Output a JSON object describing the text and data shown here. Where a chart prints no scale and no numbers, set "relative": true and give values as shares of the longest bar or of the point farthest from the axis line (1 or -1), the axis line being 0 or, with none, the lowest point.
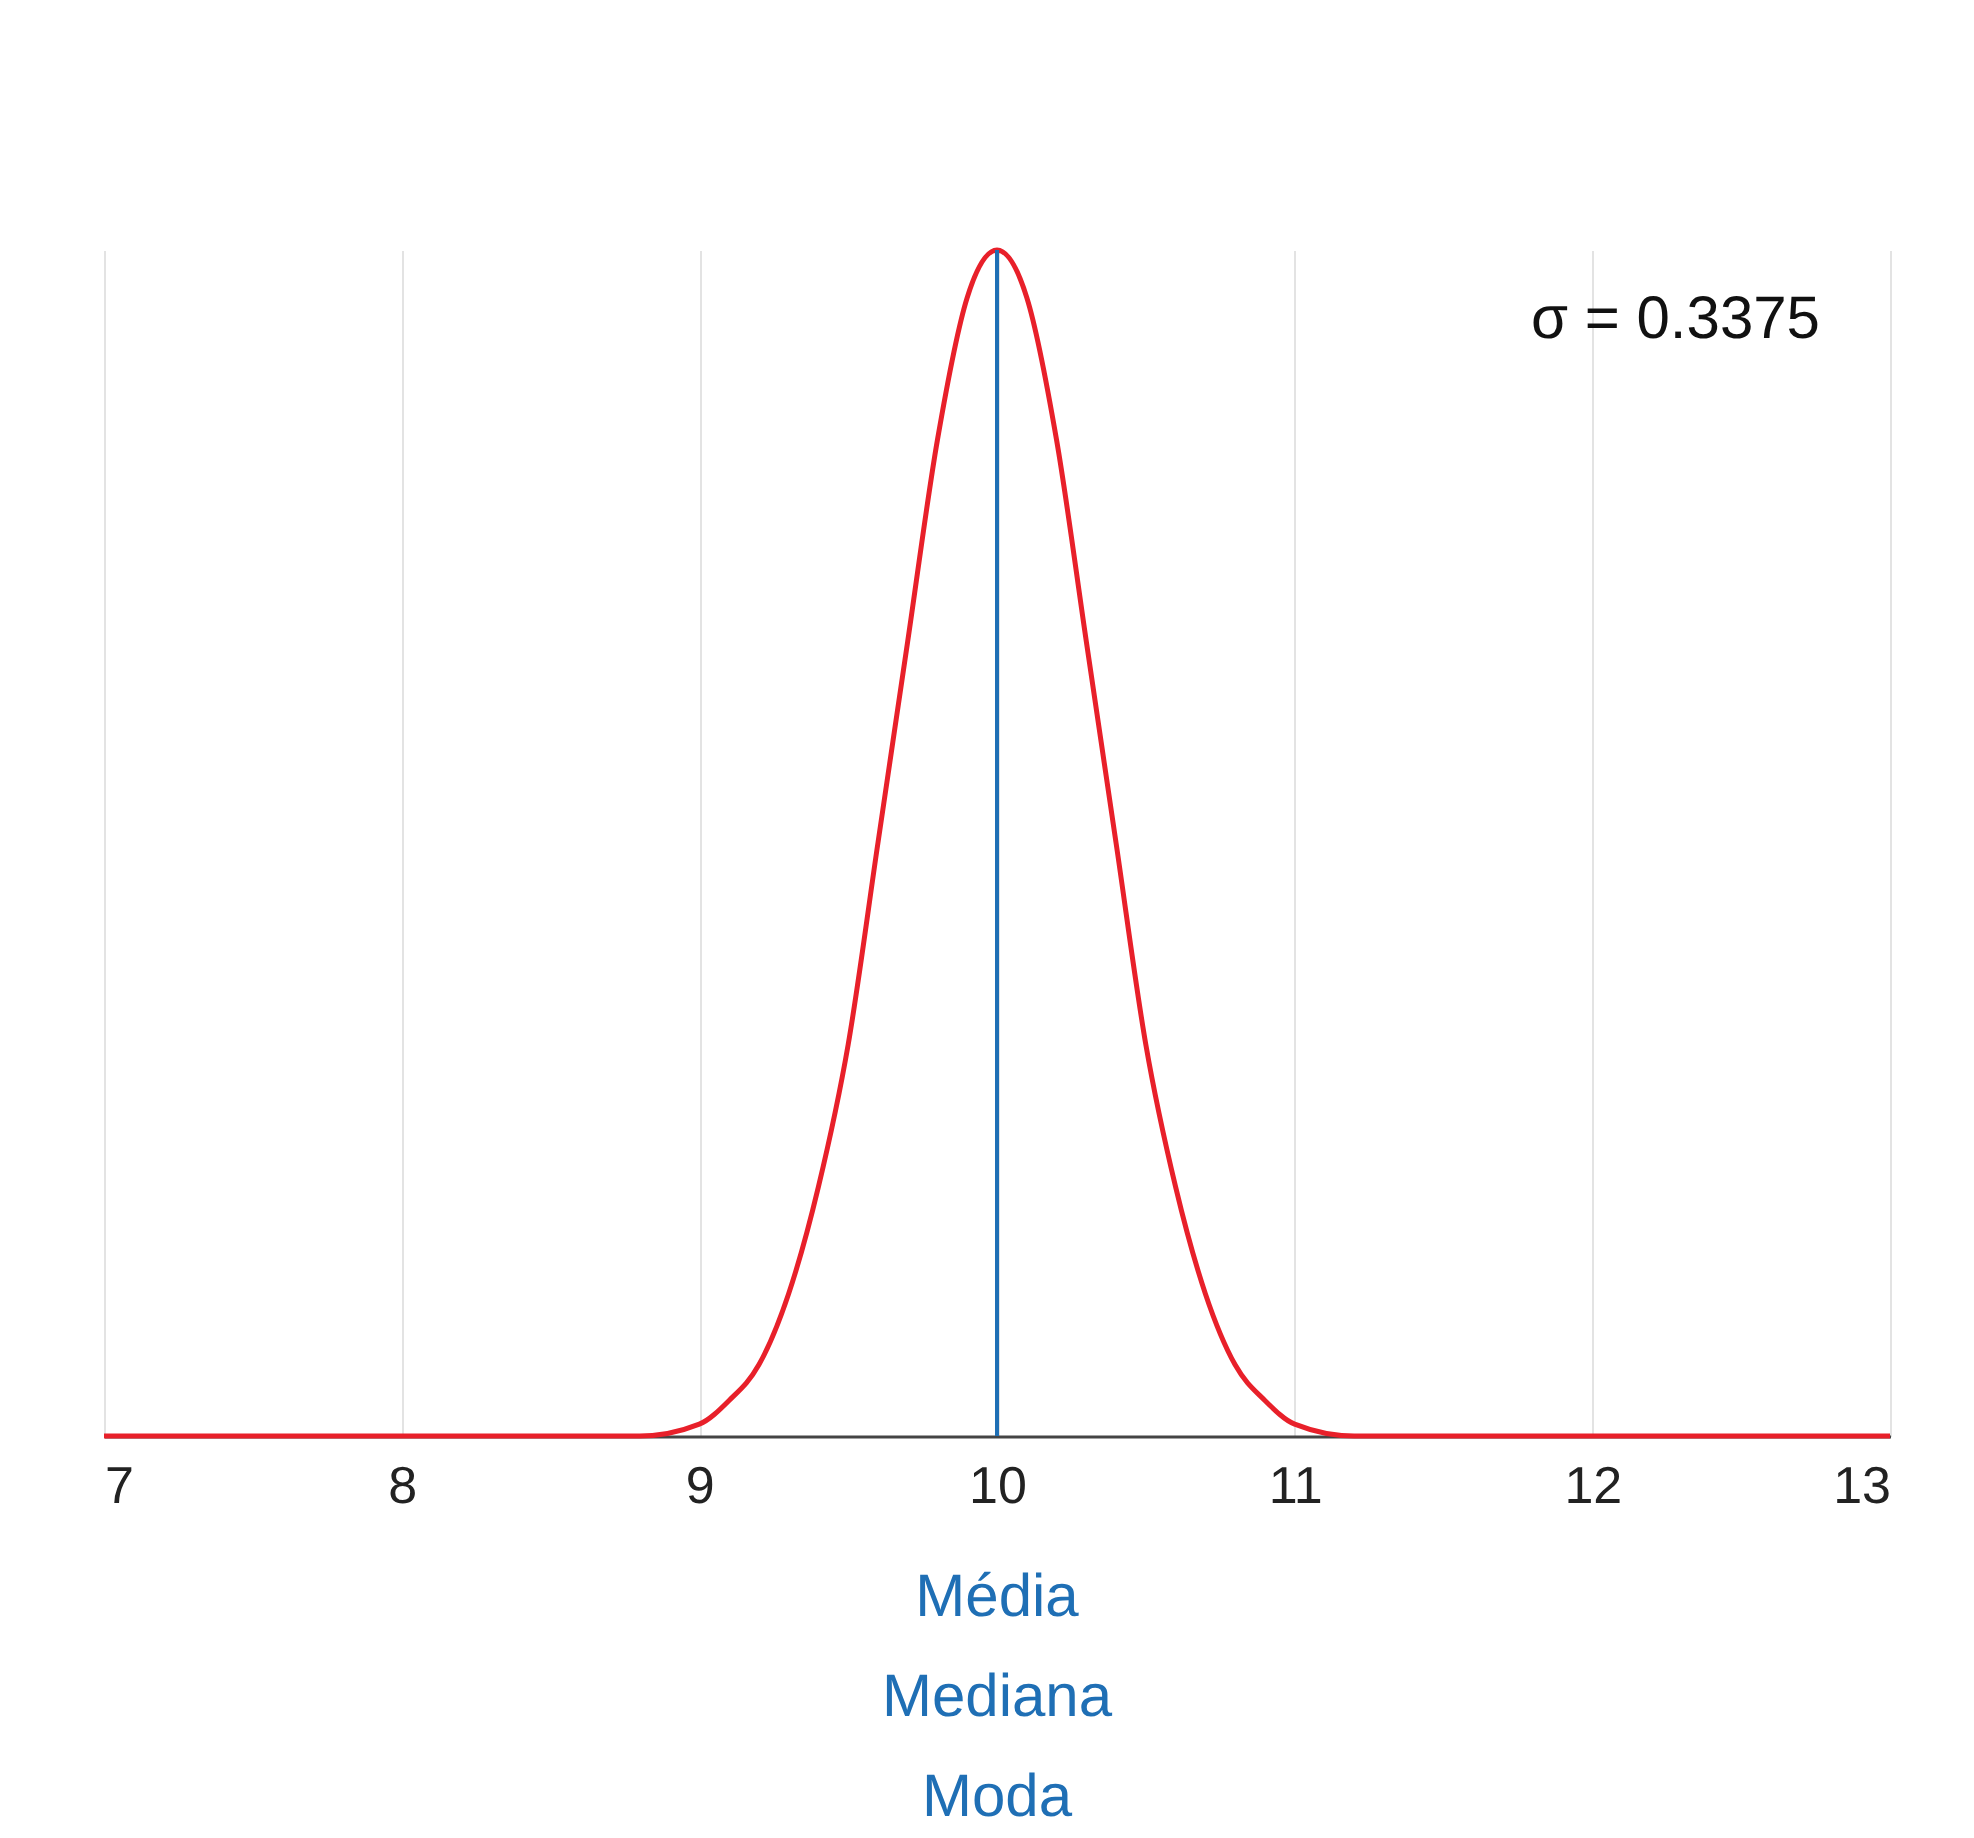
{
  "chart_data": {
    "type": "line",
    "relative": true,
    "x": [
      7,
      8,
      8.5,
      8.8,
      9,
      9.1,
      9.2,
      9.3,
      9.4,
      9.5,
      9.6,
      9.7,
      9.8,
      9.9,
      10,
      10.1,
      10.2,
      10.3,
      10.4,
      10.5,
      10.6,
      10.7,
      10.8,
      10.9,
      11,
      11.2,
      11.5,
      12,
      13
    ],
    "series": [
      {
        "color": "#e8202a",
        "values": [
          0,
          0,
          0,
          0,
          0.01,
          0.03,
          0.06,
          0.12,
          0.21,
          0.33,
          0.5,
          0.67,
          0.84,
          0.96,
          1,
          0.96,
          0.84,
          0.67,
          0.5,
          0.33,
          0.21,
          0.12,
          0.06,
          0.03,
          0.01,
          0,
          0,
          0,
          0
        ]
      }
    ],
    "xlim": [
      7,
      13
    ],
    "xticks": [
      7,
      8,
      9,
      10,
      11,
      12,
      13
    ],
    "grid": "x",
    "marker": "none",
    "line_style": "solid",
    "ref_lines": [
      {
        "axis": "x",
        "value": 10,
        "label": "Média\nMediana\nModa",
        "color": "#1f6fb5"
      }
    ],
    "annotations": [
      "σ = 0.3375"
    ]
  }
}
